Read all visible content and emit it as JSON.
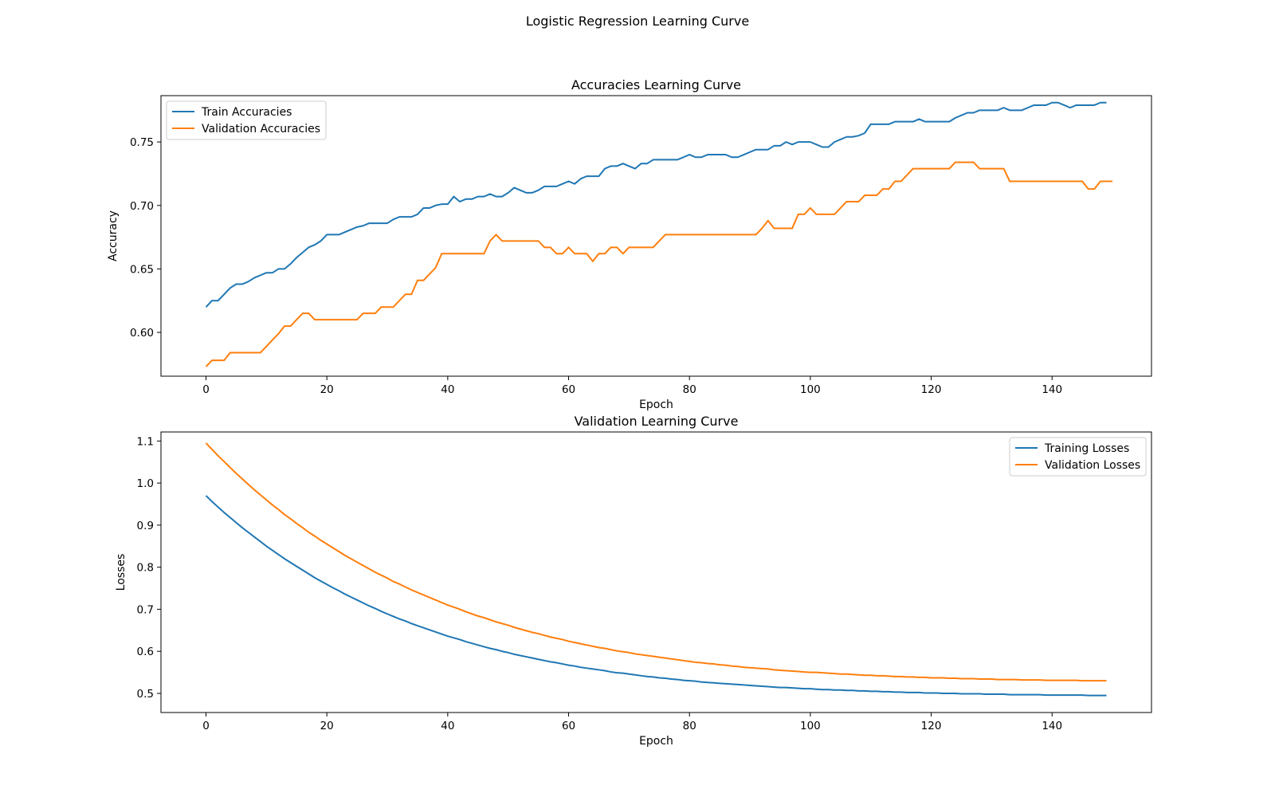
{
  "figure_title": "Logistic Regression Learning Curve",
  "chart_data": [
    {
      "type": "line",
      "title": "Accuracies Learning Curve",
      "xlabel": "Epoch",
      "ylabel": "Accuracy",
      "xlim": [
        -7.45,
        156.45
      ],
      "ylim": [
        0.5655,
        0.7865
      ],
      "xticks": [
        0,
        20,
        40,
        60,
        80,
        100,
        120,
        140
      ],
      "yticks": [
        0.6,
        0.65,
        0.7,
        0.75
      ],
      "ytick_decimals": 2,
      "grid": false,
      "legend_position": "upper-left",
      "x_start": 0,
      "series": [
        {
          "name": "Train Accuracies",
          "color": "#1f77b4",
          "values": [
            0.62,
            0.625,
            0.625,
            0.63,
            0.635,
            0.638,
            0.638,
            0.64,
            0.643,
            0.645,
            0.647,
            0.647,
            0.65,
            0.65,
            0.654,
            0.659,
            0.663,
            0.667,
            0.669,
            0.672,
            0.677,
            0.677,
            0.677,
            0.679,
            0.681,
            0.683,
            0.684,
            0.686,
            0.686,
            0.686,
            0.686,
            0.689,
            0.691,
            0.691,
            0.691,
            0.693,
            0.698,
            0.698,
            0.7,
            0.701,
            0.701,
            0.707,
            0.703,
            0.705,
            0.705,
            0.707,
            0.707,
            0.709,
            0.707,
            0.707,
            0.71,
            0.714,
            0.712,
            0.71,
            0.71,
            0.712,
            0.715,
            0.715,
            0.715,
            0.717,
            0.719,
            0.717,
            0.721,
            0.723,
            0.723,
            0.723,
            0.729,
            0.731,
            0.731,
            0.733,
            0.731,
            0.729,
            0.733,
            0.733,
            0.736,
            0.736,
            0.736,
            0.736,
            0.736,
            0.738,
            0.74,
            0.738,
            0.738,
            0.74,
            0.74,
            0.74,
            0.74,
            0.738,
            0.738,
            0.74,
            0.742,
            0.744,
            0.744,
            0.744,
            0.747,
            0.747,
            0.75,
            0.748,
            0.75,
            0.75,
            0.75,
            0.748,
            0.746,
            0.746,
            0.75,
            0.752,
            0.754,
            0.754,
            0.755,
            0.757,
            0.764,
            0.764,
            0.764,
            0.764,
            0.766,
            0.766,
            0.766,
            0.766,
            0.768,
            0.766,
            0.766,
            0.766,
            0.766,
            0.766,
            0.769,
            0.771,
            0.773,
            0.773,
            0.775,
            0.775,
            0.775,
            0.775,
            0.777,
            0.775,
            0.775,
            0.775,
            0.777,
            0.779,
            0.779,
            0.779,
            0.781,
            0.781,
            0.779,
            0.777,
            0.779,
            0.779,
            0.779,
            0.779,
            0.781,
            0.781
          ]
        },
        {
          "name": "Validation Accuracies",
          "color": "#ff7f0e",
          "values": [
            0.573,
            0.578,
            0.578,
            0.578,
            0.584,
            0.584,
            0.584,
            0.584,
            0.584,
            0.584,
            0.589,
            0.594,
            0.599,
            0.605,
            0.605,
            0.61,
            0.615,
            0.615,
            0.61,
            0.61,
            0.61,
            0.61,
            0.61,
            0.61,
            0.61,
            0.61,
            0.615,
            0.615,
            0.615,
            0.62,
            0.62,
            0.62,
            0.625,
            0.63,
            0.63,
            0.641,
            0.641,
            0.646,
            0.651,
            0.662,
            0.662,
            0.662,
            0.662,
            0.662,
            0.662,
            0.662,
            0.662,
            0.672,
            0.677,
            0.672,
            0.672,
            0.672,
            0.672,
            0.672,
            0.672,
            0.672,
            0.667,
            0.667,
            0.662,
            0.662,
            0.667,
            0.662,
            0.662,
            0.662,
            0.656,
            0.662,
            0.662,
            0.667,
            0.667,
            0.662,
            0.667,
            0.667,
            0.667,
            0.667,
            0.667,
            0.672,
            0.677,
            0.677,
            0.677,
            0.677,
            0.677,
            0.677,
            0.677,
            0.677,
            0.677,
            0.677,
            0.677,
            0.677,
            0.677,
            0.677,
            0.677,
            0.677,
            0.682,
            0.688,
            0.682,
            0.682,
            0.682,
            0.682,
            0.693,
            0.693,
            0.698,
            0.693,
            0.693,
            0.693,
            0.693,
            0.698,
            0.703,
            0.703,
            0.703,
            0.708,
            0.708,
            0.708,
            0.713,
            0.713,
            0.719,
            0.719,
            0.724,
            0.729,
            0.729,
            0.729,
            0.729,
            0.729,
            0.729,
            0.729,
            0.734,
            0.734,
            0.734,
            0.734,
            0.729,
            0.729,
            0.729,
            0.729,
            0.729,
            0.719,
            0.719,
            0.719,
            0.719,
            0.719,
            0.719,
            0.719,
            0.719,
            0.719,
            0.719,
            0.719,
            0.719,
            0.719,
            0.713,
            0.713,
            0.719,
            0.719,
            0.719
          ]
        }
      ]
    },
    {
      "type": "line",
      "title": "Validation Learning Curve",
      "xlabel": "Epoch",
      "ylabel": "Losses",
      "xlim": [
        -7.45,
        156.45
      ],
      "ylim": [
        0.4545,
        1.1215
      ],
      "xticks": [
        0,
        20,
        40,
        60,
        80,
        100,
        120,
        140
      ],
      "yticks": [
        0.5,
        0.6,
        0.7,
        0.8,
        0.9,
        1.0,
        1.1
      ],
      "ytick_decimals": 1,
      "grid": false,
      "legend_position": "upper-right",
      "x_start": 0,
      "series": [
        {
          "name": "Training Losses",
          "color": "#1f77b4",
          "values": [
            0.97,
            0.956,
            0.943,
            0.93,
            0.918,
            0.906,
            0.894,
            0.883,
            0.872,
            0.861,
            0.85,
            0.84,
            0.83,
            0.82,
            0.811,
            0.802,
            0.793,
            0.784,
            0.775,
            0.767,
            0.759,
            0.751,
            0.744,
            0.736,
            0.729,
            0.722,
            0.715,
            0.708,
            0.702,
            0.695,
            0.689,
            0.683,
            0.677,
            0.672,
            0.666,
            0.661,
            0.656,
            0.651,
            0.646,
            0.641,
            0.636,
            0.632,
            0.628,
            0.623,
            0.619,
            0.615,
            0.611,
            0.607,
            0.604,
            0.6,
            0.597,
            0.593,
            0.59,
            0.587,
            0.584,
            0.581,
            0.578,
            0.575,
            0.573,
            0.57,
            0.567,
            0.565,
            0.562,
            0.56,
            0.558,
            0.556,
            0.554,
            0.551,
            0.549,
            0.548,
            0.546,
            0.544,
            0.542,
            0.54,
            0.539,
            0.537,
            0.536,
            0.534,
            0.533,
            0.531,
            0.53,
            0.529,
            0.527,
            0.526,
            0.525,
            0.524,
            0.523,
            0.522,
            0.521,
            0.52,
            0.519,
            0.518,
            0.517,
            0.516,
            0.515,
            0.514,
            0.514,
            0.513,
            0.512,
            0.511,
            0.511,
            0.51,
            0.509,
            0.509,
            0.508,
            0.508,
            0.507,
            0.507,
            0.506,
            0.506,
            0.505,
            0.505,
            0.504,
            0.504,
            0.503,
            0.503,
            0.502,
            0.502,
            0.502,
            0.501,
            0.501,
            0.501,
            0.5,
            0.5,
            0.5,
            0.499,
            0.499,
            0.499,
            0.499,
            0.498,
            0.498,
            0.498,
            0.498,
            0.497,
            0.497,
            0.497,
            0.497,
            0.497,
            0.497,
            0.496,
            0.496,
            0.496,
            0.496,
            0.496,
            0.496,
            0.496,
            0.495,
            0.495,
            0.495,
            0.495
          ]
        },
        {
          "name": "Validation Losses",
          "color": "#ff7f0e",
          "values": [
            1.095,
            1.08,
            1.065,
            1.051,
            1.037,
            1.023,
            1.01,
            0.997,
            0.984,
            0.972,
            0.96,
            0.948,
            0.937,
            0.925,
            0.915,
            0.904,
            0.894,
            0.883,
            0.874,
            0.864,
            0.855,
            0.846,
            0.837,
            0.828,
            0.82,
            0.812,
            0.804,
            0.796,
            0.788,
            0.781,
            0.774,
            0.766,
            0.76,
            0.753,
            0.746,
            0.74,
            0.734,
            0.728,
            0.722,
            0.716,
            0.71,
            0.705,
            0.7,
            0.694,
            0.689,
            0.684,
            0.68,
            0.675,
            0.67,
            0.666,
            0.662,
            0.657,
            0.653,
            0.649,
            0.645,
            0.642,
            0.638,
            0.634,
            0.631,
            0.628,
            0.624,
            0.621,
            0.618,
            0.615,
            0.612,
            0.609,
            0.607,
            0.604,
            0.601,
            0.599,
            0.597,
            0.594,
            0.592,
            0.59,
            0.588,
            0.586,
            0.584,
            0.582,
            0.58,
            0.578,
            0.576,
            0.574,
            0.573,
            0.571,
            0.57,
            0.568,
            0.567,
            0.565,
            0.564,
            0.562,
            0.561,
            0.56,
            0.559,
            0.558,
            0.556,
            0.555,
            0.554,
            0.553,
            0.552,
            0.551,
            0.55,
            0.55,
            0.549,
            0.548,
            0.547,
            0.546,
            0.546,
            0.545,
            0.544,
            0.543,
            0.543,
            0.542,
            0.542,
            0.541,
            0.54,
            0.54,
            0.539,
            0.539,
            0.538,
            0.538,
            0.537,
            0.537,
            0.537,
            0.536,
            0.536,
            0.535,
            0.535,
            0.535,
            0.534,
            0.534,
            0.534,
            0.533,
            0.533,
            0.533,
            0.533,
            0.532,
            0.532,
            0.532,
            0.532,
            0.531,
            0.531,
            0.531,
            0.531,
            0.531,
            0.531,
            0.53,
            0.53,
            0.53,
            0.53,
            0.53
          ]
        }
      ]
    }
  ]
}
